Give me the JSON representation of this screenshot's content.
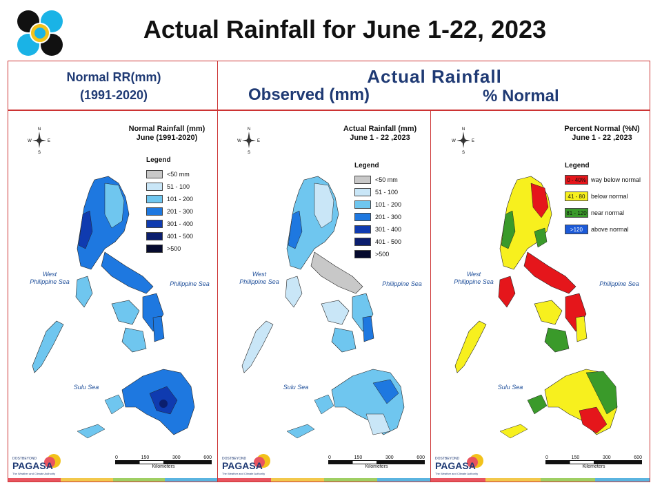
{
  "header": {
    "title": "Actual Rainfall for June 1-22, 2023",
    "normal_label_line1": "Normal RR(mm)",
    "normal_label_line2": "(1991-2020)",
    "actual_label": "Actual Rainfall",
    "observed_label": "Observed (mm)",
    "percent_label": "% Normal"
  },
  "panels": [
    {
      "map_title_line1": "Normal Rainfall (mm)",
      "map_title_line2": "June (1991-2020)",
      "legend_title": "Legend",
      "legend": [
        {
          "label": "<50 mm",
          "color": "#c8c8c8"
        },
        {
          "label": "51 - 100",
          "color": "#c9e6f7"
        },
        {
          "label": "101 - 200",
          "color": "#6fc6ef"
        },
        {
          "label": "201 - 300",
          "color": "#1e78e0"
        },
        {
          "label": "301 - 400",
          "color": "#0f3bb0"
        },
        {
          "label": "401 - 500",
          "color": "#0b1e6e"
        },
        {
          "label": ">500",
          "color": "#050a2e"
        }
      ]
    },
    {
      "map_title_line1": "Actual Rainfall (mm)",
      "map_title_line2": "June 1 - 22 ,2023",
      "legend_title": "Legend",
      "legend": [
        {
          "label": "<50 mm",
          "color": "#c8c8c8"
        },
        {
          "label": "51 - 100",
          "color": "#c9e6f7"
        },
        {
          "label": "101 - 200",
          "color": "#6fc6ef"
        },
        {
          "label": "201 - 300",
          "color": "#1e78e0"
        },
        {
          "label": "301 - 400",
          "color": "#0f3bb0"
        },
        {
          "label": "401 - 500",
          "color": "#0b1e6e"
        },
        {
          "label": ">500",
          "color": "#050a2e"
        }
      ]
    },
    {
      "map_title_line1": "Percent Normal (%N)",
      "map_title_line2": "June 1 - 22 ,2023",
      "legend_title": "Legend",
      "legend": [
        {
          "range": "0 - 40%",
          "label": "way below normal",
          "color": "#e5161b"
        },
        {
          "range": "41 - 80",
          "label": "below normal",
          "color": "#f7f01e"
        },
        {
          "range": "81 - 120",
          "label": "near normal",
          "color": "#3a9a2a"
        },
        {
          "range": ">120",
          "label": "above normal",
          "color": "#1c5ad8"
        }
      ]
    }
  ],
  "seas": {
    "west": "West\nPhilippine Sea",
    "east": "Philippine Sea",
    "sulu": "Sulu Sea"
  },
  "scale": {
    "ticks": [
      "0",
      "150",
      "300",
      "600"
    ],
    "unit": "Kilometers"
  },
  "compass": {
    "n": "N",
    "s": "S",
    "e": "E",
    "w": "W"
  },
  "branding": {
    "dost": "DOST",
    "beyond": "BEYOND",
    "name": "PAGASA",
    "tagline": "The Weather and Climate Authority"
  },
  "colors": {
    "stripe": [
      "#e8545f",
      "#f2c84b",
      "#9fcf63",
      "#5ab4e0"
    ]
  }
}
